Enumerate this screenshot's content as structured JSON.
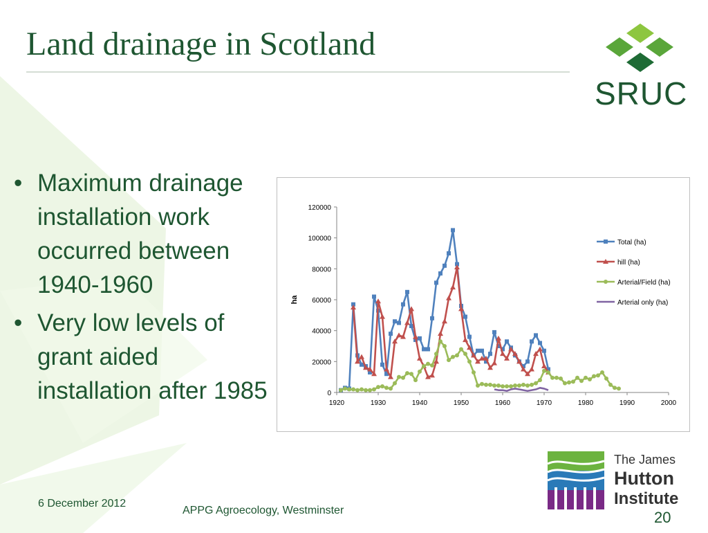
{
  "slide": {
    "title": "Land drainage in Scotland",
    "bullets": [
      "Maximum drainage installation work occurred between 1940-1960",
      "Very low levels of grant aided installation after 1985"
    ],
    "footer_date": "6 December 2012",
    "footer_event": "APPG Agroecology, Westminster",
    "page_number": "20"
  },
  "logos": {
    "sruc": "SRUC",
    "hutton_line1": "The James",
    "hutton_line2": "Hutton",
    "hutton_line3": "Institute"
  },
  "colors": {
    "title_green": "#1e5631",
    "total": "#4f81bd",
    "hill": "#c0504d",
    "arterial_field": "#9bbb59",
    "arterial_only": "#8064a2"
  },
  "chart_data": {
    "type": "line",
    "ylabel": "ha",
    "xlim": [
      1920,
      2000
    ],
    "ylim": [
      0,
      120000
    ],
    "x_ticks": [
      "1920",
      "1930",
      "1940",
      "1950",
      "1960",
      "1970",
      "1980",
      "1990",
      "2000"
    ],
    "y_ticks": [
      "0",
      "20000",
      "40000",
      "60000",
      "80000",
      "100000",
      "120000"
    ],
    "legend_position": "right",
    "series": [
      {
        "name": "Total (ha)",
        "x": [
          1921,
          1922,
          1923,
          1924,
          1925,
          1926,
          1927,
          1928,
          1929,
          1930,
          1931,
          1932,
          1933,
          1934,
          1935,
          1936,
          1937,
          1938,
          1939,
          1940,
          1941,
          1942,
          1943,
          1944,
          1945,
          1946,
          1947,
          1948,
          1949,
          1950,
          1951,
          1952,
          1953,
          1954,
          1955,
          1956,
          1957,
          1958,
          1959,
          1960,
          1961,
          1962,
          1963,
          1964,
          1965,
          1966,
          1967,
          1968,
          1969,
          1970,
          1971
        ],
        "y": [
          1500,
          3000,
          2500,
          57000,
          24000,
          18000,
          17000,
          13000,
          62000,
          53000,
          18000,
          12000,
          38000,
          46000,
          45000,
          57000,
          65000,
          43000,
          34000,
          35000,
          28000,
          28000,
          48000,
          71000,
          77000,
          82000,
          90000,
          105000,
          83000,
          56000,
          49000,
          36000,
          24000,
          27000,
          27000,
          20000,
          25000,
          39000,
          30000,
          28000,
          33000,
          29000,
          24000,
          20000,
          17000,
          20000,
          33000,
          37000,
          32000,
          27000,
          15000
        ]
      },
      {
        "name": "hill (ha)",
        "x": [
          1924,
          1925,
          1926,
          1927,
          1928,
          1929,
          1930,
          1931,
          1932,
          1933,
          1934,
          1935,
          1936,
          1937,
          1938,
          1939,
          1940,
          1941,
          1942,
          1943,
          1944,
          1945,
          1946,
          1947,
          1948,
          1949,
          1950,
          1951,
          1952,
          1953,
          1954,
          1955,
          1956,
          1957,
          1958,
          1959,
          1960,
          1961,
          1962,
          1963,
          1964,
          1965,
          1966,
          1967,
          1968,
          1969,
          1970,
          1971
        ],
        "y": [
          55000,
          20000,
          23000,
          16000,
          15000,
          12000,
          59000,
          49000,
          15000,
          10000,
          33000,
          37000,
          36000,
          45000,
          54000,
          36000,
          22000,
          17000,
          10000,
          11000,
          20000,
          38000,
          46000,
          61000,
          68000,
          81000,
          54000,
          34000,
          29000,
          24000,
          20000,
          22000,
          22000,
          16000,
          19000,
          35000,
          25000,
          22000,
          28000,
          25000,
          20000,
          15000,
          12000,
          15000,
          25000,
          28000,
          17000,
          13000
        ]
      },
      {
        "name": "Arterial/Field (ha)",
        "x": [
          1921,
          1922,
          1923,
          1924,
          1925,
          1926,
          1927,
          1928,
          1929,
          1930,
          1931,
          1932,
          1933,
          1934,
          1935,
          1936,
          1937,
          1938,
          1939,
          1940,
          1941,
          1942,
          1943,
          1944,
          1945,
          1946,
          1947,
          1948,
          1949,
          1950,
          1951,
          1952,
          1953,
          1954,
          1955,
          1956,
          1957,
          1958,
          1959,
          1960,
          1961,
          1962,
          1963,
          1964,
          1965,
          1966,
          1967,
          1968,
          1969,
          1970,
          1971,
          1972,
          1973,
          1974,
          1975,
          1976,
          1977,
          1978,
          1979,
          1980,
          1981,
          1982,
          1983,
          1984,
          1985,
          1986,
          1987,
          1988
        ],
        "y": [
          1500,
          2500,
          2000,
          2000,
          1500,
          2000,
          1500,
          1500,
          2000,
          3500,
          4000,
          3000,
          2500,
          6000,
          10000,
          9500,
          12500,
          12000,
          8000,
          13500,
          17000,
          18500,
          17500,
          25000,
          33000,
          30000,
          21000,
          23000,
          24000,
          28000,
          25000,
          20000,
          13000,
          4500,
          5500,
          5000,
          5000,
          4500,
          4500,
          4000,
          4000,
          4000,
          4500,
          4500,
          5000,
          4500,
          5000,
          6000,
          8000,
          14000,
          13000,
          9500,
          9500,
          9000,
          6000,
          6500,
          7000,
          9500,
          7500,
          9500,
          8500,
          10500,
          11000,
          13000,
          9000,
          5000,
          3000,
          2500
        ]
      },
      {
        "name": "Arterial only (ha)",
        "x": [
          1958,
          1959,
          1960,
          1961,
          1962,
          1963,
          1964,
          1965,
          1966,
          1967,
          1968,
          1969,
          1970,
          1971
        ],
        "y": [
          2000,
          1500,
          1500,
          1000,
          2000,
          2500,
          2000,
          1500,
          1000,
          1500,
          2000,
          3000,
          2500,
          1500
        ]
      }
    ]
  }
}
